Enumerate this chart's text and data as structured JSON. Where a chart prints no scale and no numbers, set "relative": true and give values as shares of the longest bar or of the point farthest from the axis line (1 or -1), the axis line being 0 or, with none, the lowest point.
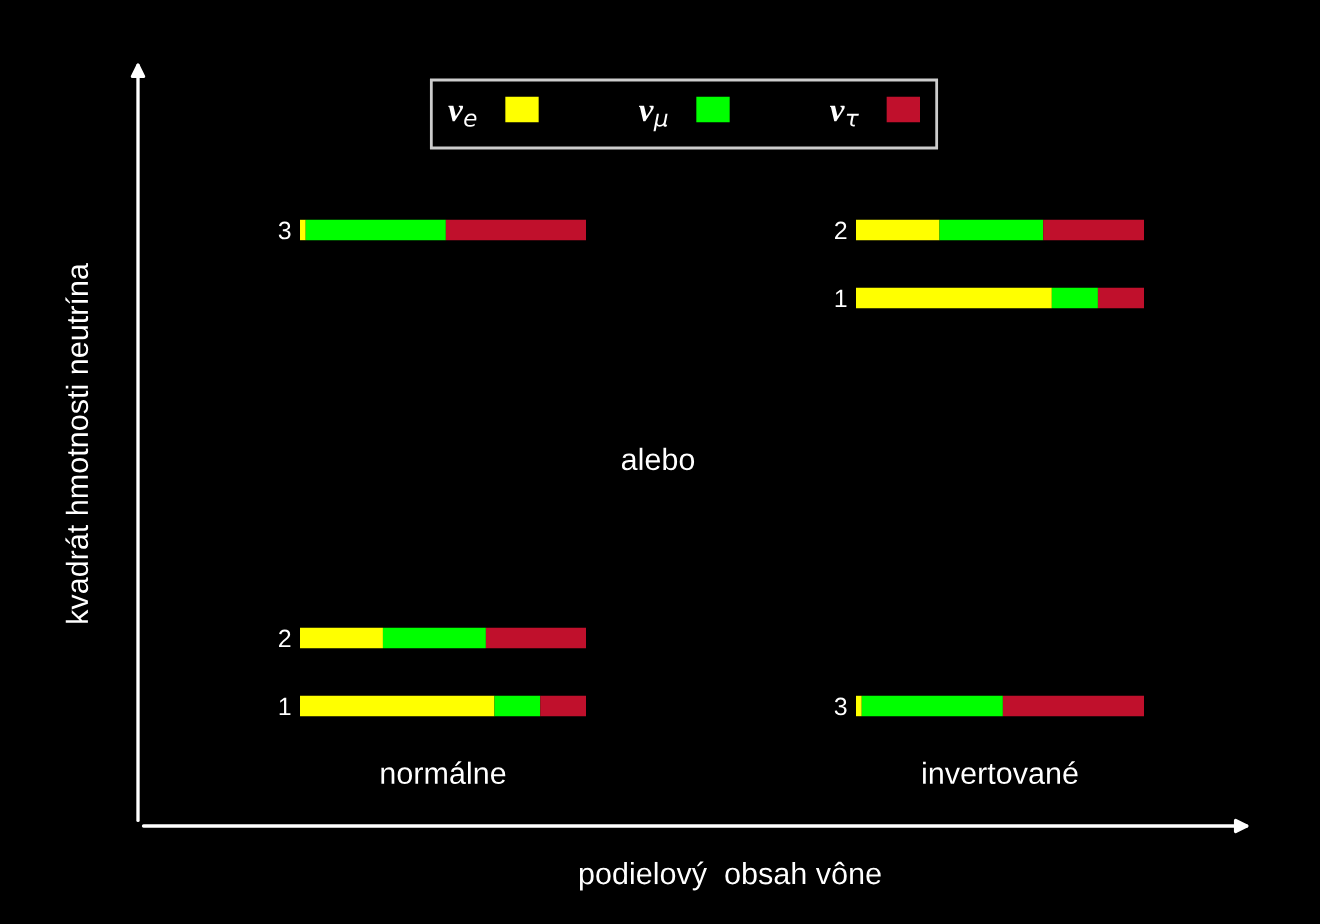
{
  "chart_data": [
    {
      "type": "bar",
      "orientation": "horizontal",
      "stacked": true,
      "relative": true,
      "title": "normálne",
      "xlabel": "podielový  obsah vône",
      "ylabel": "kvadrát hmotnosti neutrína",
      "legend": "top",
      "annotations": [
        "alebo"
      ],
      "categories": [
        "3",
        null,
        null,
        null,
        null,
        null,
        "2",
        "1"
      ],
      "series": [
        {
          "name": "ν$_{e}$",
          "color": "#ffff00",
          "values": [
            0.02,
            null,
            null,
            null,
            null,
            null,
            0.29,
            0.68
          ]
        },
        {
          "name": "ν$_{μ}$",
          "color": "#00ff00",
          "values": [
            0.49,
            null,
            null,
            null,
            null,
            null,
            0.36,
            0.16
          ]
        },
        {
          "name": "ν$_{τ}$",
          "color": "#c0102c",
          "values": [
            0.49,
            null,
            null,
            null,
            null,
            null,
            0.35,
            0.16
          ]
        }
      ]
    },
    {
      "type": "bar",
      "orientation": "horizontal",
      "stacked": true,
      "relative": true,
      "title": "invertované",
      "categories": [
        "2",
        "1",
        null,
        null,
        null,
        null,
        null,
        "3"
      ],
      "series": [
        {
          "color": "#ffff00",
          "values": [
            0.29,
            0.68,
            null,
            null,
            null,
            null,
            null,
            0.02
          ]
        },
        {
          "color": "#00ff00",
          "values": [
            0.36,
            0.16,
            null,
            null,
            null,
            null,
            null,
            0.49
          ]
        },
        {
          "color": "#c0102c",
          "values": [
            0.35,
            0.16,
            null,
            null,
            null,
            null,
            null,
            0.49
          ]
        }
      ]
    }
  ]
}
